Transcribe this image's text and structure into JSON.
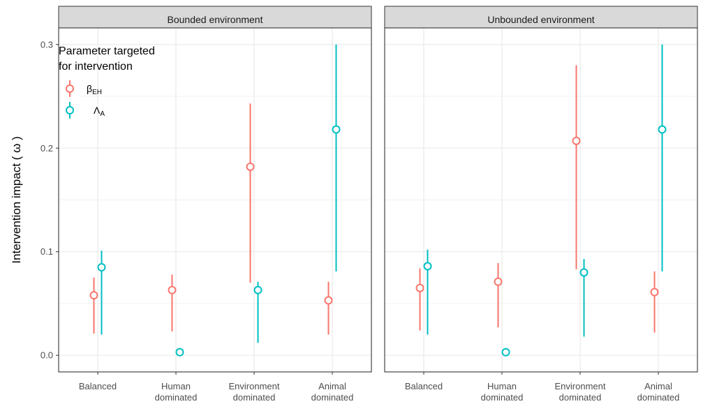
{
  "chart_data": {
    "type": "scatter",
    "ylabel": "Intervention impact ( ω )",
    "ylim": [
      -0.016,
      0.316
    ],
    "y_ticks": [
      {
        "value": 0.0,
        "label": "0.0"
      },
      {
        "value": 0.1,
        "label": "0.1"
      },
      {
        "value": 0.2,
        "label": "0.2"
      },
      {
        "value": 0.3,
        "label": "0.3"
      }
    ],
    "categories": [
      {
        "line1": "Balanced",
        "line2": ""
      },
      {
        "line1": "Human",
        "line2": "dominated"
      },
      {
        "line1": "Environment",
        "line2": "dominated"
      },
      {
        "line1": "Animal",
        "line2": "dominated"
      }
    ],
    "grid": true,
    "legend": {
      "title_line1": "Parameter targeted",
      "title_line2": "for intervention",
      "position": "top-left",
      "entries": [
        {
          "symbol": "β",
          "subscript": "EH",
          "color": "#F8766D"
        },
        {
          "symbol": "Λ",
          "subscript": "A",
          "color": "#00BFC4"
        }
      ]
    },
    "series_colors": [
      "#F8766D",
      "#00BFC4"
    ],
    "panels": [
      {
        "title": "Bounded environment",
        "series": [
          {
            "values": [
              0.058,
              0.063,
              0.182,
              0.053
            ],
            "lower": [
              0.021,
              0.023,
              0.07,
              0.02
            ],
            "upper": [
              0.075,
              0.078,
              0.243,
              0.071
            ]
          },
          {
            "values": [
              0.085,
              0.003,
              0.063,
              0.218
            ],
            "lower": [
              0.02,
              0.003,
              0.012,
              0.081
            ],
            "upper": [
              0.101,
              0.003,
              0.071,
              0.3
            ]
          }
        ]
      },
      {
        "title": "Unbounded environment",
        "series": [
          {
            "values": [
              0.065,
              0.071,
              0.207,
              0.061
            ],
            "lower": [
              0.024,
              0.027,
              0.083,
              0.022
            ],
            "upper": [
              0.084,
              0.089,
              0.28,
              0.081
            ]
          },
          {
            "values": [
              0.086,
              0.003,
              0.08,
              0.218
            ],
            "lower": [
              0.02,
              0.003,
              0.018,
              0.081
            ],
            "upper": [
              0.102,
              0.003,
              0.093,
              0.3
            ]
          }
        ]
      }
    ]
  }
}
